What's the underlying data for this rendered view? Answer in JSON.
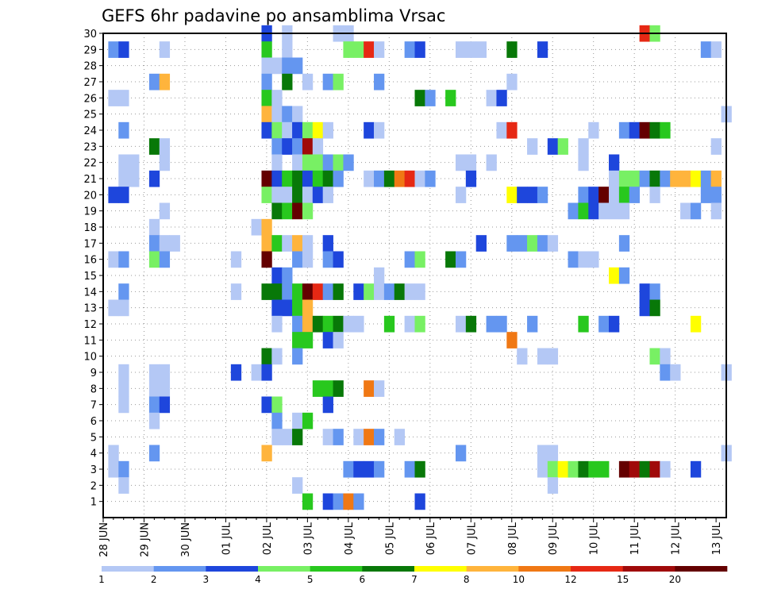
{
  "chart_data": {
    "type": "heatmap",
    "title": "GEFS 6hr padavine po ansamblima Vrsac",
    "xlabel": "",
    "ylabel": "",
    "x_tick_labels": [
      "28 JUN",
      "29 JUN",
      "30 JUN",
      "01 JUL",
      "02 JUL",
      "03 JUL",
      "04 JUL",
      "05 JUL",
      "06 JUL",
      "07 JUL",
      "08 JUL",
      "09 JUL",
      "10 JUL",
      "11 JUL",
      "12 JUL",
      "13 JUL"
    ],
    "y_tick_labels": [
      "1",
      "2",
      "3",
      "4",
      "5",
      "6",
      "7",
      "8",
      "9",
      "10",
      "11",
      "12",
      "13",
      "14",
      "15",
      "16",
      "17",
      "18",
      "19",
      "20",
      "21",
      "22",
      "23",
      "24",
      "25",
      "26",
      "27",
      "28",
      "29",
      "30"
    ],
    "xlim_steps": [
      0,
      61
    ],
    "ylim_members": [
      0,
      30
    ],
    "grid": true,
    "legend_position": "bottom",
    "colorbar": {
      "labels": [
        "1",
        "2",
        "3",
        "4",
        "5",
        "6",
        "7",
        "8",
        "10",
        "12",
        "15",
        "20"
      ],
      "colors": [
        "#b4c8f5",
        "#6496f0",
        "#1e46dc",
        "#78f064",
        "#28c81e",
        "#087808",
        "#ffff00",
        "#ffb43c",
        "#f07814",
        "#e62814",
        "#a00a0a",
        "#640000"
      ]
    },
    "cells": [
      [
        16,
        30,
        3
      ],
      [
        18,
        30,
        1
      ],
      [
        23,
        30,
        1
      ],
      [
        24,
        30,
        1
      ],
      [
        53,
        30,
        10
      ],
      [
        54,
        30,
        4
      ],
      [
        1,
        29,
        2
      ],
      [
        2,
        29,
        3
      ],
      [
        6,
        29,
        1
      ],
      [
        16,
        29,
        5
      ],
      [
        18,
        29,
        1
      ],
      [
        24,
        29,
        4
      ],
      [
        25,
        29,
        4
      ],
      [
        26,
        29,
        10
      ],
      [
        27,
        29,
        1
      ],
      [
        30,
        29,
        2
      ],
      [
        31,
        29,
        3
      ],
      [
        35,
        29,
        1
      ],
      [
        36,
        29,
        1
      ],
      [
        37,
        29,
        1
      ],
      [
        40,
        29,
        6
      ],
      [
        43,
        29,
        3
      ],
      [
        59,
        29,
        2
      ],
      [
        60,
        29,
        1
      ],
      [
        16,
        28,
        1
      ],
      [
        17,
        28,
        1
      ],
      [
        18,
        28,
        2
      ],
      [
        19,
        28,
        2
      ],
      [
        5,
        27,
        2
      ],
      [
        6,
        27,
        8
      ],
      [
        16,
        27,
        2
      ],
      [
        18,
        27,
        6
      ],
      [
        20,
        27,
        1
      ],
      [
        22,
        27,
        2
      ],
      [
        23,
        27,
        4
      ],
      [
        27,
        27,
        2
      ],
      [
        40,
        27,
        1
      ],
      [
        1,
        26,
        1
      ],
      [
        2,
        26,
        1
      ],
      [
        16,
        26,
        5
      ],
      [
        17,
        26,
        1
      ],
      [
        31,
        26,
        6
      ],
      [
        32,
        26,
        2
      ],
      [
        34,
        26,
        5
      ],
      [
        38,
        26,
        1
      ],
      [
        39,
        26,
        3
      ],
      [
        16,
        25,
        8
      ],
      [
        17,
        25,
        1
      ],
      [
        18,
        25,
        2
      ],
      [
        19,
        25,
        1
      ],
      [
        61,
        25,
        1
      ],
      [
        2,
        24,
        2
      ],
      [
        16,
        24,
        3
      ],
      [
        17,
        24,
        4
      ],
      [
        18,
        24,
        1
      ],
      [
        19,
        24,
        3
      ],
      [
        20,
        24,
        4
      ],
      [
        21,
        24,
        7
      ],
      [
        22,
        24,
        1
      ],
      [
        26,
        24,
        3
      ],
      [
        27,
        24,
        1
      ],
      [
        39,
        24,
        1
      ],
      [
        40,
        24,
        10
      ],
      [
        48,
        24,
        1
      ],
      [
        51,
        24,
        2
      ],
      [
        52,
        24,
        3
      ],
      [
        53,
        24,
        12
      ],
      [
        54,
        24,
        6
      ],
      [
        55,
        24,
        5
      ],
      [
        5,
        23,
        6
      ],
      [
        6,
        23,
        1
      ],
      [
        17,
        23,
        2
      ],
      [
        18,
        23,
        3
      ],
      [
        19,
        23,
        2
      ],
      [
        20,
        23,
        11
      ],
      [
        21,
        23,
        1
      ],
      [
        42,
        23,
        1
      ],
      [
        44,
        23,
        3
      ],
      [
        45,
        23,
        4
      ],
      [
        47,
        23,
        1
      ],
      [
        60,
        23,
        1
      ],
      [
        2,
        22,
        1
      ],
      [
        3,
        22,
        1
      ],
      [
        6,
        22,
        1
      ],
      [
        17,
        22,
        1
      ],
      [
        19,
        22,
        1
      ],
      [
        20,
        22,
        4
      ],
      [
        21,
        22,
        4
      ],
      [
        22,
        22,
        2
      ],
      [
        23,
        22,
        4
      ],
      [
        24,
        22,
        2
      ],
      [
        35,
        22,
        1
      ],
      [
        36,
        22,
        1
      ],
      [
        38,
        22,
        1
      ],
      [
        47,
        22,
        1
      ],
      [
        50,
        22,
        3
      ],
      [
        2,
        21,
        1
      ],
      [
        3,
        21,
        1
      ],
      [
        5,
        21,
        3
      ],
      [
        16,
        21,
        12
      ],
      [
        17,
        21,
        3
      ],
      [
        18,
        21,
        5
      ],
      [
        19,
        21,
        6
      ],
      [
        20,
        21,
        3
      ],
      [
        21,
        21,
        5
      ],
      [
        22,
        21,
        6
      ],
      [
        23,
        21,
        2
      ],
      [
        26,
        21,
        1
      ],
      [
        27,
        21,
        2
      ],
      [
        28,
        21,
        6
      ],
      [
        29,
        21,
        9
      ],
      [
        30,
        21,
        10
      ],
      [
        31,
        21,
        1
      ],
      [
        32,
        21,
        2
      ],
      [
        36,
        21,
        3
      ],
      [
        50,
        21,
        1
      ],
      [
        51,
        21,
        4
      ],
      [
        52,
        21,
        4
      ],
      [
        53,
        21,
        2
      ],
      [
        54,
        21,
        6
      ],
      [
        55,
        21,
        2
      ],
      [
        56,
        21,
        8
      ],
      [
        57,
        21,
        8
      ],
      [
        58,
        21,
        7
      ],
      [
        59,
        21,
        2
      ],
      [
        60,
        21,
        8
      ],
      [
        1,
        20,
        3
      ],
      [
        2,
        20,
        3
      ],
      [
        16,
        20,
        4
      ],
      [
        17,
        20,
        1
      ],
      [
        18,
        20,
        1
      ],
      [
        19,
        20,
        6
      ],
      [
        20,
        20,
        1
      ],
      [
        21,
        20,
        3
      ],
      [
        22,
        20,
        1
      ],
      [
        35,
        20,
        1
      ],
      [
        40,
        20,
        7
      ],
      [
        41,
        20,
        3
      ],
      [
        42,
        20,
        3
      ],
      [
        43,
        20,
        2
      ],
      [
        47,
        20,
        2
      ],
      [
        48,
        20,
        3
      ],
      [
        49,
        20,
        12
      ],
      [
        50,
        20,
        1
      ],
      [
        51,
        20,
        5
      ],
      [
        52,
        20,
        2
      ],
      [
        54,
        20,
        1
      ],
      [
        59,
        20,
        2
      ],
      [
        60,
        20,
        2
      ],
      [
        6,
        19,
        1
      ],
      [
        17,
        19,
        6
      ],
      [
        18,
        19,
        5
      ],
      [
        19,
        19,
        12
      ],
      [
        20,
        19,
        4
      ],
      [
        46,
        19,
        2
      ],
      [
        47,
        19,
        5
      ],
      [
        48,
        19,
        3
      ],
      [
        49,
        19,
        1
      ],
      [
        50,
        19,
        1
      ],
      [
        51,
        19,
        1
      ],
      [
        57,
        19,
        1
      ],
      [
        58,
        19,
        2
      ],
      [
        60,
        19,
        1
      ],
      [
        5,
        18,
        1
      ],
      [
        15,
        18,
        1
      ],
      [
        16,
        18,
        8
      ],
      [
        5,
        17,
        2
      ],
      [
        6,
        17,
        1
      ],
      [
        7,
        17,
        1
      ],
      [
        16,
        17,
        8
      ],
      [
        17,
        17,
        5
      ],
      [
        18,
        17,
        1
      ],
      [
        19,
        17,
        8
      ],
      [
        20,
        17,
        1
      ],
      [
        22,
        17,
        3
      ],
      [
        37,
        17,
        3
      ],
      [
        40,
        17,
        2
      ],
      [
        41,
        17,
        2
      ],
      [
        42,
        17,
        4
      ],
      [
        43,
        17,
        2
      ],
      [
        44,
        17,
        1
      ],
      [
        51,
        17,
        2
      ],
      [
        1,
        16,
        1
      ],
      [
        2,
        16,
        2
      ],
      [
        5,
        16,
        4
      ],
      [
        6,
        16,
        2
      ],
      [
        13,
        16,
        1
      ],
      [
        16,
        16,
        12
      ],
      [
        19,
        16,
        2
      ],
      [
        20,
        16,
        1
      ],
      [
        22,
        16,
        2
      ],
      [
        23,
        16,
        3
      ],
      [
        30,
        16,
        2
      ],
      [
        31,
        16,
        4
      ],
      [
        34,
        16,
        6
      ],
      [
        35,
        16,
        2
      ],
      [
        46,
        16,
        2
      ],
      [
        47,
        16,
        1
      ],
      [
        48,
        16,
        1
      ],
      [
        17,
        15,
        3
      ],
      [
        18,
        15,
        2
      ],
      [
        27,
        15,
        1
      ],
      [
        50,
        15,
        7
      ],
      [
        51,
        15,
        2
      ],
      [
        2,
        14,
        2
      ],
      [
        13,
        14,
        1
      ],
      [
        16,
        14,
        6
      ],
      [
        17,
        14,
        6
      ],
      [
        18,
        14,
        2
      ],
      [
        19,
        14,
        5
      ],
      [
        20,
        14,
        12
      ],
      [
        21,
        14,
        10
      ],
      [
        22,
        14,
        2
      ],
      [
        23,
        14,
        6
      ],
      [
        25,
        14,
        3
      ],
      [
        26,
        14,
        4
      ],
      [
        27,
        14,
        1
      ],
      [
        28,
        14,
        2
      ],
      [
        29,
        14,
        6
      ],
      [
        30,
        14,
        1
      ],
      [
        31,
        14,
        1
      ],
      [
        53,
        14,
        3
      ],
      [
        54,
        14,
        2
      ],
      [
        1,
        13,
        1
      ],
      [
        2,
        13,
        1
      ],
      [
        17,
        13,
        3
      ],
      [
        18,
        13,
        3
      ],
      [
        19,
        13,
        5
      ],
      [
        20,
        13,
        8
      ],
      [
        53,
        13,
        3
      ],
      [
        54,
        13,
        6
      ],
      [
        17,
        12,
        1
      ],
      [
        19,
        12,
        2
      ],
      [
        20,
        12,
        8
      ],
      [
        21,
        12,
        6
      ],
      [
        22,
        12,
        5
      ],
      [
        23,
        12,
        6
      ],
      [
        24,
        12,
        1
      ],
      [
        25,
        12,
        1
      ],
      [
        28,
        12,
        5
      ],
      [
        30,
        12,
        1
      ],
      [
        31,
        12,
        4
      ],
      [
        35,
        12,
        1
      ],
      [
        36,
        12,
        6
      ],
      [
        38,
        12,
        2
      ],
      [
        39,
        12,
        2
      ],
      [
        42,
        12,
        2
      ],
      [
        47,
        12,
        5
      ],
      [
        49,
        12,
        2
      ],
      [
        50,
        12,
        3
      ],
      [
        58,
        12,
        7
      ],
      [
        19,
        11,
        5
      ],
      [
        20,
        11,
        5
      ],
      [
        22,
        11,
        3
      ],
      [
        23,
        11,
        1
      ],
      [
        40,
        11,
        9
      ],
      [
        16,
        10,
        6
      ],
      [
        17,
        10,
        1
      ],
      [
        19,
        10,
        2
      ],
      [
        41,
        10,
        1
      ],
      [
        43,
        10,
        1
      ],
      [
        44,
        10,
        1
      ],
      [
        54,
        10,
        4
      ],
      [
        55,
        10,
        1
      ],
      [
        2,
        9,
        1
      ],
      [
        5,
        9,
        1
      ],
      [
        6,
        9,
        1
      ],
      [
        13,
        9,
        3
      ],
      [
        15,
        9,
        1
      ],
      [
        16,
        9,
        3
      ],
      [
        55,
        9,
        2
      ],
      [
        56,
        9,
        1
      ],
      [
        61,
        9,
        1
      ],
      [
        2,
        8,
        1
      ],
      [
        5,
        8,
        1
      ],
      [
        6,
        8,
        1
      ],
      [
        21,
        8,
        5
      ],
      [
        22,
        8,
        5
      ],
      [
        23,
        8,
        6
      ],
      [
        26,
        8,
        9
      ],
      [
        27,
        8,
        1
      ],
      [
        2,
        7,
        1
      ],
      [
        5,
        7,
        2
      ],
      [
        6,
        7,
        3
      ],
      [
        16,
        7,
        3
      ],
      [
        17,
        7,
        4
      ],
      [
        22,
        7,
        3
      ],
      [
        5,
        6,
        1
      ],
      [
        17,
        6,
        2
      ],
      [
        19,
        6,
        1
      ],
      [
        20,
        6,
        5
      ],
      [
        17,
        5,
        1
      ],
      [
        18,
        5,
        1
      ],
      [
        19,
        5,
        6
      ],
      [
        22,
        5,
        1
      ],
      [
        23,
        5,
        2
      ],
      [
        25,
        5,
        1
      ],
      [
        26,
        5,
        9
      ],
      [
        27,
        5,
        2
      ],
      [
        29,
        5,
        1
      ],
      [
        1,
        4,
        1
      ],
      [
        5,
        4,
        2
      ],
      [
        16,
        4,
        8
      ],
      [
        35,
        4,
        2
      ],
      [
        43,
        4,
        1
      ],
      [
        44,
        4,
        1
      ],
      [
        61,
        4,
        1
      ],
      [
        1,
        3,
        1
      ],
      [
        2,
        3,
        2
      ],
      [
        24,
        3,
        2
      ],
      [
        25,
        3,
        3
      ],
      [
        26,
        3,
        3
      ],
      [
        27,
        3,
        2
      ],
      [
        30,
        3,
        2
      ],
      [
        31,
        3,
        6
      ],
      [
        43,
        3,
        1
      ],
      [
        44,
        3,
        4
      ],
      [
        45,
        3,
        7
      ],
      [
        46,
        3,
        4
      ],
      [
        47,
        3,
        6
      ],
      [
        48,
        3,
        5
      ],
      [
        49,
        3,
        5
      ],
      [
        51,
        3,
        12
      ],
      [
        52,
        3,
        11
      ],
      [
        53,
        3,
        6
      ],
      [
        54,
        3,
        11
      ],
      [
        55,
        3,
        1
      ],
      [
        58,
        3,
        3
      ],
      [
        2,
        2,
        1
      ],
      [
        19,
        2,
        1
      ],
      [
        44,
        2,
        1
      ],
      [
        20,
        1,
        5
      ],
      [
        22,
        1,
        3
      ],
      [
        23,
        1,
        2
      ],
      [
        24,
        1,
        9
      ],
      [
        25,
        1,
        2
      ],
      [
        31,
        1,
        3
      ]
    ]
  }
}
